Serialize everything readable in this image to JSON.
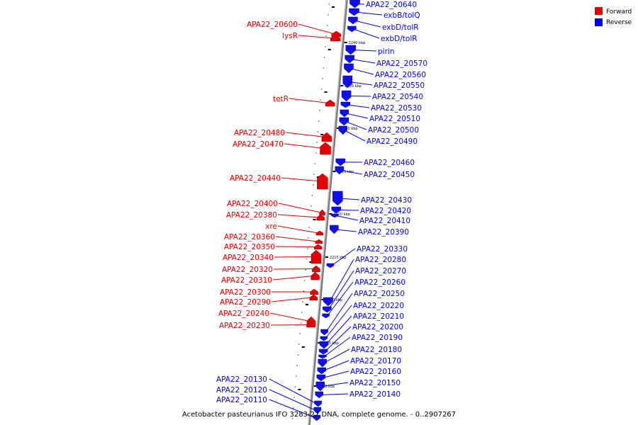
{
  "legend": [
    {
      "label": "Forward",
      "color": "#e60000"
    },
    {
      "label": "Reverse",
      "color": "#0000ee"
    }
  ],
  "caption": "Acetobacter pasteurianus IFO 3283-22 DNA, complete genome. - 0..2907267",
  "colors": {
    "forward": "#e60000",
    "reverse": "#1010ee",
    "label_forward": "#e00000",
    "label_reverse": "#0000e0",
    "backbone": "#7a7a7a"
  },
  "ticks": [
    {
      "text": "2240 kbp"
    },
    {
      "text": "2235 kbp"
    },
    {
      "text": "2230 kbp"
    },
    {
      "text": "2225 kbp"
    },
    {
      "text": "2220 kbp"
    },
    {
      "text": "2215 kbp"
    },
    {
      "text": "2210 kbp"
    },
    {
      "text": "2205 kbp"
    },
    {
      "text": "2200 kbp"
    }
  ],
  "forward_genes": [
    {
      "label": "APA22_20600"
    },
    {
      "label": "lysR"
    },
    {
      "label": "tetR"
    },
    {
      "label": "APA22_20480"
    },
    {
      "label": "APA22_20470"
    },
    {
      "label": "APA22_20440"
    },
    {
      "label": "APA22_20400"
    },
    {
      "label": "APA22_20380"
    },
    {
      "label": "xre"
    },
    {
      "label": "APA22_20360"
    },
    {
      "label": "APA22_20350"
    },
    {
      "label": "APA22_20340"
    },
    {
      "label": "APA22_20320"
    },
    {
      "label": "APA22_20310"
    },
    {
      "label": "APA22_20300"
    },
    {
      "label": "APA22_20290"
    },
    {
      "label": "APA22_20240"
    },
    {
      "label": "APA22_20230"
    }
  ],
  "reverse_genes": [
    {
      "label": "APA22_20640"
    },
    {
      "label": "exbB/tolQ"
    },
    {
      "label": "exbD/tolR"
    },
    {
      "label": "exbD/tolR"
    },
    {
      "label": "pirin"
    },
    {
      "label": "APA22_20570"
    },
    {
      "label": "APA22_20560"
    },
    {
      "label": "APA22_20550"
    },
    {
      "label": "APA22_20540"
    },
    {
      "label": "APA22_20530"
    },
    {
      "label": "APA22_20510"
    },
    {
      "label": "APA22_20500"
    },
    {
      "label": "APA22_20490"
    },
    {
      "label": "APA22_20460"
    },
    {
      "label": "APA22_20450"
    },
    {
      "label": "APA22_20430"
    },
    {
      "label": "APA22_20420"
    },
    {
      "label": "APA22_20410"
    },
    {
      "label": "APA22_20390"
    },
    {
      "label": "APA22_20330"
    },
    {
      "label": "APA22_20280"
    },
    {
      "label": "APA22_20270"
    },
    {
      "label": "APA22_20260"
    },
    {
      "label": "APA22_20250"
    },
    {
      "label": "APA22_20220"
    },
    {
      "label": "APA22_20210"
    },
    {
      "label": "APA22_20200"
    },
    {
      "label": "APA22_20190"
    },
    {
      "label": "APA22_20180"
    },
    {
      "label": "APA22_20170"
    },
    {
      "label": "APA22_20160"
    },
    {
      "label": "APA22_20150"
    },
    {
      "label": "APA22_20140"
    },
    {
      "label": "APA22_20130"
    },
    {
      "label": "APA22_20120"
    },
    {
      "label": "APA22_20110"
    }
  ]
}
